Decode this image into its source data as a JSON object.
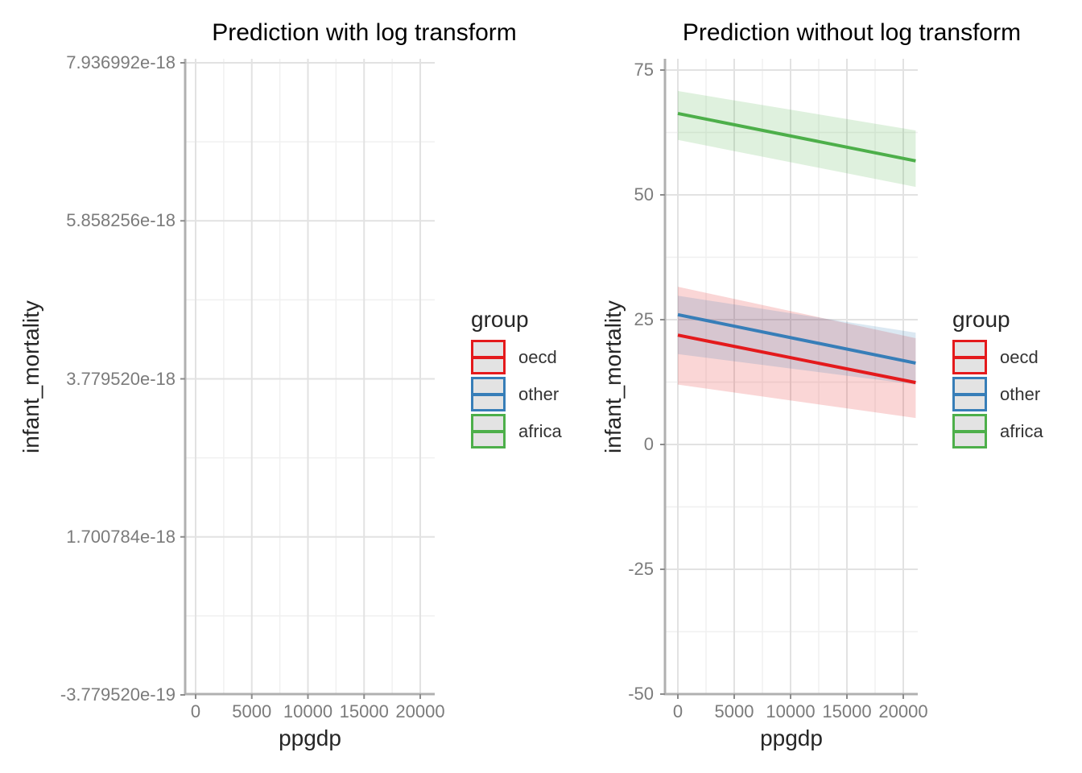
{
  "figure": {
    "background": "#ffffff",
    "text_color_title": "#000000",
    "text_color_axis_title": "#262626",
    "text_color_ticks": "#7b7b7b"
  },
  "chart_data": [
    {
      "type": "line",
      "title": "Prediction with log transform",
      "xlabel": "ppgdp",
      "ylabel": "infant_mortality",
      "x_tick_labels": [
        "0",
        "5000",
        "10000",
        "15000",
        "20000"
      ],
      "x_tick_values": [
        0,
        5000,
        10000,
        15000,
        20000
      ],
      "y_tick_labels": [
        "7.936992e-18",
        "5.858256e-18",
        "3.779520e-18",
        "1.700784e-18",
        "-3.779520e-19"
      ],
      "y_tick_values": [
        7.936992e-18,
        5.858256e-18,
        3.77952e-18,
        1.700784e-18,
        -3.77952e-19
      ],
      "xlim": [
        -930,
        21290
      ],
      "ylim": [
        -3.9e-19,
        8e-18
      ],
      "grid": "major-and-minor",
      "panel_note": "panel appears empty: predicted fits are on the order of 1e-18 (essentially 0), so no lines or ribbons are visible",
      "legend": {
        "title": "group",
        "position": "right",
        "entries": [
          {
            "label": "oecd",
            "color": "#E41A1C"
          },
          {
            "label": "other",
            "color": "#377EB8"
          },
          {
            "label": "africa",
            "color": "#4DAF4A"
          }
        ]
      },
      "series": [
        {
          "name": "oecd",
          "color": "#E41A1C",
          "visible": false,
          "x": [
            0,
            21100
          ],
          "fit": [
            0,
            0
          ]
        },
        {
          "name": "other",
          "color": "#377EB8",
          "visible": false,
          "x": [
            0,
            21100
          ],
          "fit": [
            0,
            0
          ]
        },
        {
          "name": "africa",
          "color": "#4DAF4A",
          "visible": false,
          "x": [
            0,
            21100
          ],
          "fit": [
            0,
            0
          ]
        }
      ]
    },
    {
      "type": "line",
      "title": "Prediction without log transform",
      "xlabel": "ppgdp",
      "ylabel": "infant_mortality",
      "x_tick_labels": [
        "0",
        "5000",
        "10000",
        "15000",
        "20000"
      ],
      "x_tick_values": [
        0,
        5000,
        10000,
        15000,
        20000
      ],
      "y_tick_labels": [
        "75",
        "50",
        "25",
        "0",
        "-25",
        "-50"
      ],
      "y_tick_values": [
        75,
        50,
        25,
        0,
        -25,
        -50
      ],
      "xlim": [
        -1135,
        21135
      ],
      "ylim": [
        -50,
        77.3
      ],
      "grid": "major-and-minor",
      "legend": {
        "title": "group",
        "position": "right",
        "entries": [
          {
            "label": "oecd",
            "color": "#E41A1C"
          },
          {
            "label": "other",
            "color": "#377EB8"
          },
          {
            "label": "africa",
            "color": "#4DAF4A"
          }
        ]
      },
      "series": [
        {
          "name": "oecd",
          "color": "#E41A1C",
          "visible": true,
          "ribbon_opacity": 0.18,
          "x": [
            0,
            21100
          ],
          "fit": [
            21.9,
            12.4
          ],
          "ci_lower": [
            12.0,
            5.3
          ],
          "ci_upper": [
            31.6,
            21.3
          ]
        },
        {
          "name": "other",
          "color": "#377EB8",
          "visible": true,
          "ribbon_opacity": 0.18,
          "x": [
            0,
            21100
          ],
          "fit": [
            26.0,
            16.3
          ],
          "ci_lower": [
            18.1,
            12.0
          ],
          "ci_upper": [
            29.8,
            22.4
          ]
        },
        {
          "name": "africa",
          "color": "#4DAF4A",
          "visible": true,
          "ribbon_opacity": 0.18,
          "x": [
            0,
            21100
          ],
          "fit": [
            66.3,
            56.8
          ],
          "ci_lower": [
            61.0,
            51.6
          ],
          "ci_upper": [
            70.8,
            62.9
          ]
        }
      ]
    }
  ]
}
